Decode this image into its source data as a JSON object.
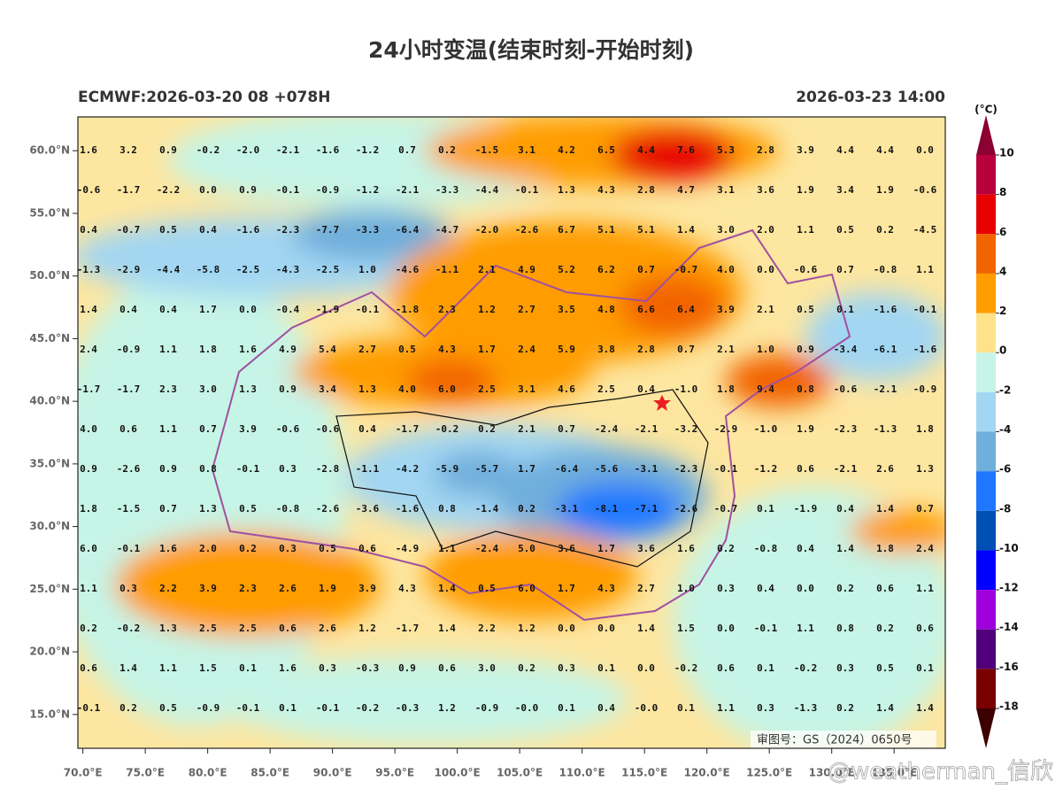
{
  "header": {
    "title": "24小时变温(结束时刻-开始时刻)",
    "model_run": "ECMWF:2026-03-20 08 +078H",
    "valid_time": "2026-03-23 14:00"
  },
  "map": {
    "lon_range": [
      69.6,
      139.1
    ],
    "lat_range": [
      12.3,
      62.7
    ],
    "lat_ticks": [
      {
        "value": 60,
        "label": "60.0°N"
      },
      {
        "value": 55,
        "label": "55.0°N"
      },
      {
        "value": 50,
        "label": "50.0°N"
      },
      {
        "value": 45,
        "label": "45.0°N"
      },
      {
        "value": 40,
        "label": "40.0°N"
      },
      {
        "value": 35,
        "label": "35.0°N"
      },
      {
        "value": 30,
        "label": "30.0°N"
      },
      {
        "value": 25,
        "label": "25.0°N"
      },
      {
        "value": 20,
        "label": "20.0°N"
      },
      {
        "value": 15,
        "label": "15.0°N"
      }
    ],
    "lon_ticks": [
      {
        "value": 70,
        "label": "70.0°E"
      },
      {
        "value": 75,
        "label": "75.0°E"
      },
      {
        "value": 80,
        "label": "80.0°E"
      },
      {
        "value": 85,
        "label": "85.0°E"
      },
      {
        "value": 90,
        "label": "90.0°E"
      },
      {
        "value": 95,
        "label": "95.0°E"
      },
      {
        "value": 100,
        "label": "100.0°E"
      },
      {
        "value": 105,
        "label": "105.0°E"
      },
      {
        "value": 110,
        "label": "110.0°E"
      },
      {
        "value": 115,
        "label": "115.0°E"
      },
      {
        "value": 120,
        "label": "120.0°E"
      },
      {
        "value": 125,
        "label": "125.0°E"
      },
      {
        "value": 130,
        "label": "130.0°E"
      },
      {
        "value": 135,
        "label": "135.0°E"
      }
    ],
    "grid_values": [
      [
        "1.6",
        "3.2",
        "0.9",
        "-0.2",
        "-2.0",
        "-2.1",
        "-1.6",
        "-1.2",
        "0.7",
        "0.2",
        "-1.5",
        "3.1",
        "4.2",
        "6.5",
        "4.4",
        "7.6",
        "5.3",
        "2.8",
        "3.9",
        "4.4",
        "4.4",
        "0.0"
      ],
      [
        "-0.6",
        "-1.7",
        "-2.2",
        "0.0",
        "0.9",
        "-0.1",
        "-0.9",
        "-1.2",
        "-2.1",
        "-3.3",
        "-4.4",
        "-0.1",
        "1.3",
        "4.3",
        "2.8",
        "4.7",
        "3.1",
        "3.6",
        "1.9",
        "3.4",
        "1.9",
        "-0.6"
      ],
      [
        "0.4",
        "-0.7",
        "0.5",
        "0.4",
        "-1.6",
        "-2.3",
        "-7.7",
        "-3.3",
        "-6.4",
        "-4.7",
        "-2.0",
        "-2.6",
        "6.7",
        "5.1",
        "5.1",
        "1.4",
        "3.0",
        "2.0",
        "1.1",
        "0.5",
        "0.2",
        "-4.5"
      ],
      [
        "-1.3",
        "-2.9",
        "-4.4",
        "-5.8",
        "-2.5",
        "-4.3",
        "-2.5",
        "1.0",
        "-4.6",
        "-1.1",
        "2.1",
        "4.9",
        "5.2",
        "6.2",
        "0.7",
        "-0.7",
        "4.0",
        "0.0",
        "-0.6",
        "0.7",
        "-0.8",
        "1.1"
      ],
      [
        "1.4",
        "0.4",
        "0.4",
        "1.7",
        "0.0",
        "-0.4",
        "-1.9",
        "-0.1",
        "-1.8",
        "2.3",
        "1.2",
        "2.7",
        "3.5",
        "4.8",
        "6.6",
        "6.4",
        "3.9",
        "2.1",
        "0.5",
        "0.1",
        "-1.6",
        "-0.1"
      ],
      [
        "2.4",
        "-0.9",
        "1.1",
        "1.8",
        "1.6",
        "4.9",
        "5.4",
        "2.7",
        "0.5",
        "4.3",
        "1.7",
        "2.4",
        "5.9",
        "3.8",
        "2.8",
        "0.7",
        "2.1",
        "1.0",
        "0.9",
        "-3.4",
        "-6.1",
        "-1.6"
      ],
      [
        "-1.7",
        "-1.7",
        "2.3",
        "3.0",
        "1.3",
        "0.9",
        "3.4",
        "1.3",
        "4.0",
        "6.0",
        "2.5",
        "3.1",
        "4.6",
        "2.5",
        "0.4",
        "-1.0",
        "1.8",
        "9.4",
        "0.8",
        "-0.6",
        "-2.1",
        "-0.9"
      ],
      [
        "4.0",
        "0.6",
        "1.1",
        "0.7",
        "3.9",
        "-0.6",
        "-0.6",
        "0.4",
        "-1.7",
        "-0.2",
        "0.2",
        "2.1",
        "0.7",
        "-2.4",
        "-2.1",
        "-3.2",
        "-2.9",
        "-1.0",
        "1.9",
        "-2.3",
        "-1.3",
        "1.8"
      ],
      [
        "0.9",
        "-2.6",
        "0.9",
        "0.8",
        "-0.1",
        "0.3",
        "-2.8",
        "-1.1",
        "-4.2",
        "-5.9",
        "-5.7",
        "1.7",
        "-6.4",
        "-5.6",
        "-3.1",
        "-2.3",
        "-0.1",
        "-1.2",
        "0.6",
        "-2.1",
        "2.6",
        "1.3"
      ],
      [
        "1.8",
        "-1.5",
        "0.7",
        "1.3",
        "0.5",
        "-0.8",
        "-2.6",
        "-3.6",
        "-1.6",
        "0.8",
        "-1.4",
        "0.2",
        "-3.1",
        "-8.1",
        "-7.1",
        "-2.6",
        "-0.7",
        "0.1",
        "-1.9",
        "0.4",
        "1.4",
        "0.7"
      ],
      [
        "6.0",
        "-0.1",
        "1.6",
        "2.0",
        "0.2",
        "0.3",
        "0.5",
        "0.6",
        "-4.9",
        "1.1",
        "-2.4",
        "5.0",
        "3.6",
        "1.7",
        "3.6",
        "1.6",
        "0.2",
        "-0.8",
        "0.4",
        "1.4",
        "1.8",
        "2.4"
      ],
      [
        "1.1",
        "0.3",
        "2.2",
        "3.9",
        "2.3",
        "2.6",
        "1.9",
        "3.9",
        "4.3",
        "1.4",
        "0.5",
        "6.0",
        "1.7",
        "4.3",
        "2.7",
        "1.0",
        "0.3",
        "0.4",
        "0.0",
        "0.2",
        "0.6",
        "1.1"
      ],
      [
        "0.2",
        "-0.2",
        "1.3",
        "2.5",
        "2.5",
        "0.6",
        "2.6",
        "1.2",
        "-1.7",
        "1.4",
        "2.2",
        "1.2",
        "0.0",
        "0.0",
        "1.4",
        "1.5",
        "0.0",
        "-0.1",
        "1.1",
        "0.8",
        "0.2",
        "0.6"
      ],
      [
        "0.6",
        "1.4",
        "1.1",
        "1.5",
        "0.1",
        "1.6",
        "0.3",
        "-0.3",
        "0.9",
        "0.6",
        "3.0",
        "0.2",
        "0.3",
        "0.1",
        "0.0",
        "-0.2",
        "0.6",
        "0.1",
        "-0.2",
        "0.3",
        "0.5",
        "0.1"
      ],
      [
        "-0.1",
        "0.2",
        "0.5",
        "-0.9",
        "-0.1",
        "0.1",
        "-0.1",
        "-0.2",
        "-0.3",
        "1.2",
        "-0.9",
        "-0.0",
        "0.1",
        "0.4",
        "-0.0",
        "0.1",
        "1.1",
        "0.3",
        "-1.3",
        "0.2",
        "1.4",
        "1.4"
      ]
    ],
    "approval_note": "审图号：GS（2024）0650号"
  },
  "colorbar": {
    "unit": "(°C)",
    "levels": [
      10,
      8,
      6,
      4,
      2,
      0,
      -2,
      -4,
      -6,
      -8,
      -10,
      -12,
      -14,
      -16,
      -18
    ],
    "colors": [
      "#8c0032",
      "#b8003c",
      "#e80000",
      "#f26400",
      "#ff9c00",
      "#ffe28a",
      "#c6f4e6",
      "#a2d6f2",
      "#70aedc",
      "#1e78ff",
      "#0050b4",
      "#0000ff",
      "#a000dc",
      "#50007a",
      "#7a0000",
      "#3c0000"
    ]
  },
  "watermark": "@weatherman_信欣"
}
